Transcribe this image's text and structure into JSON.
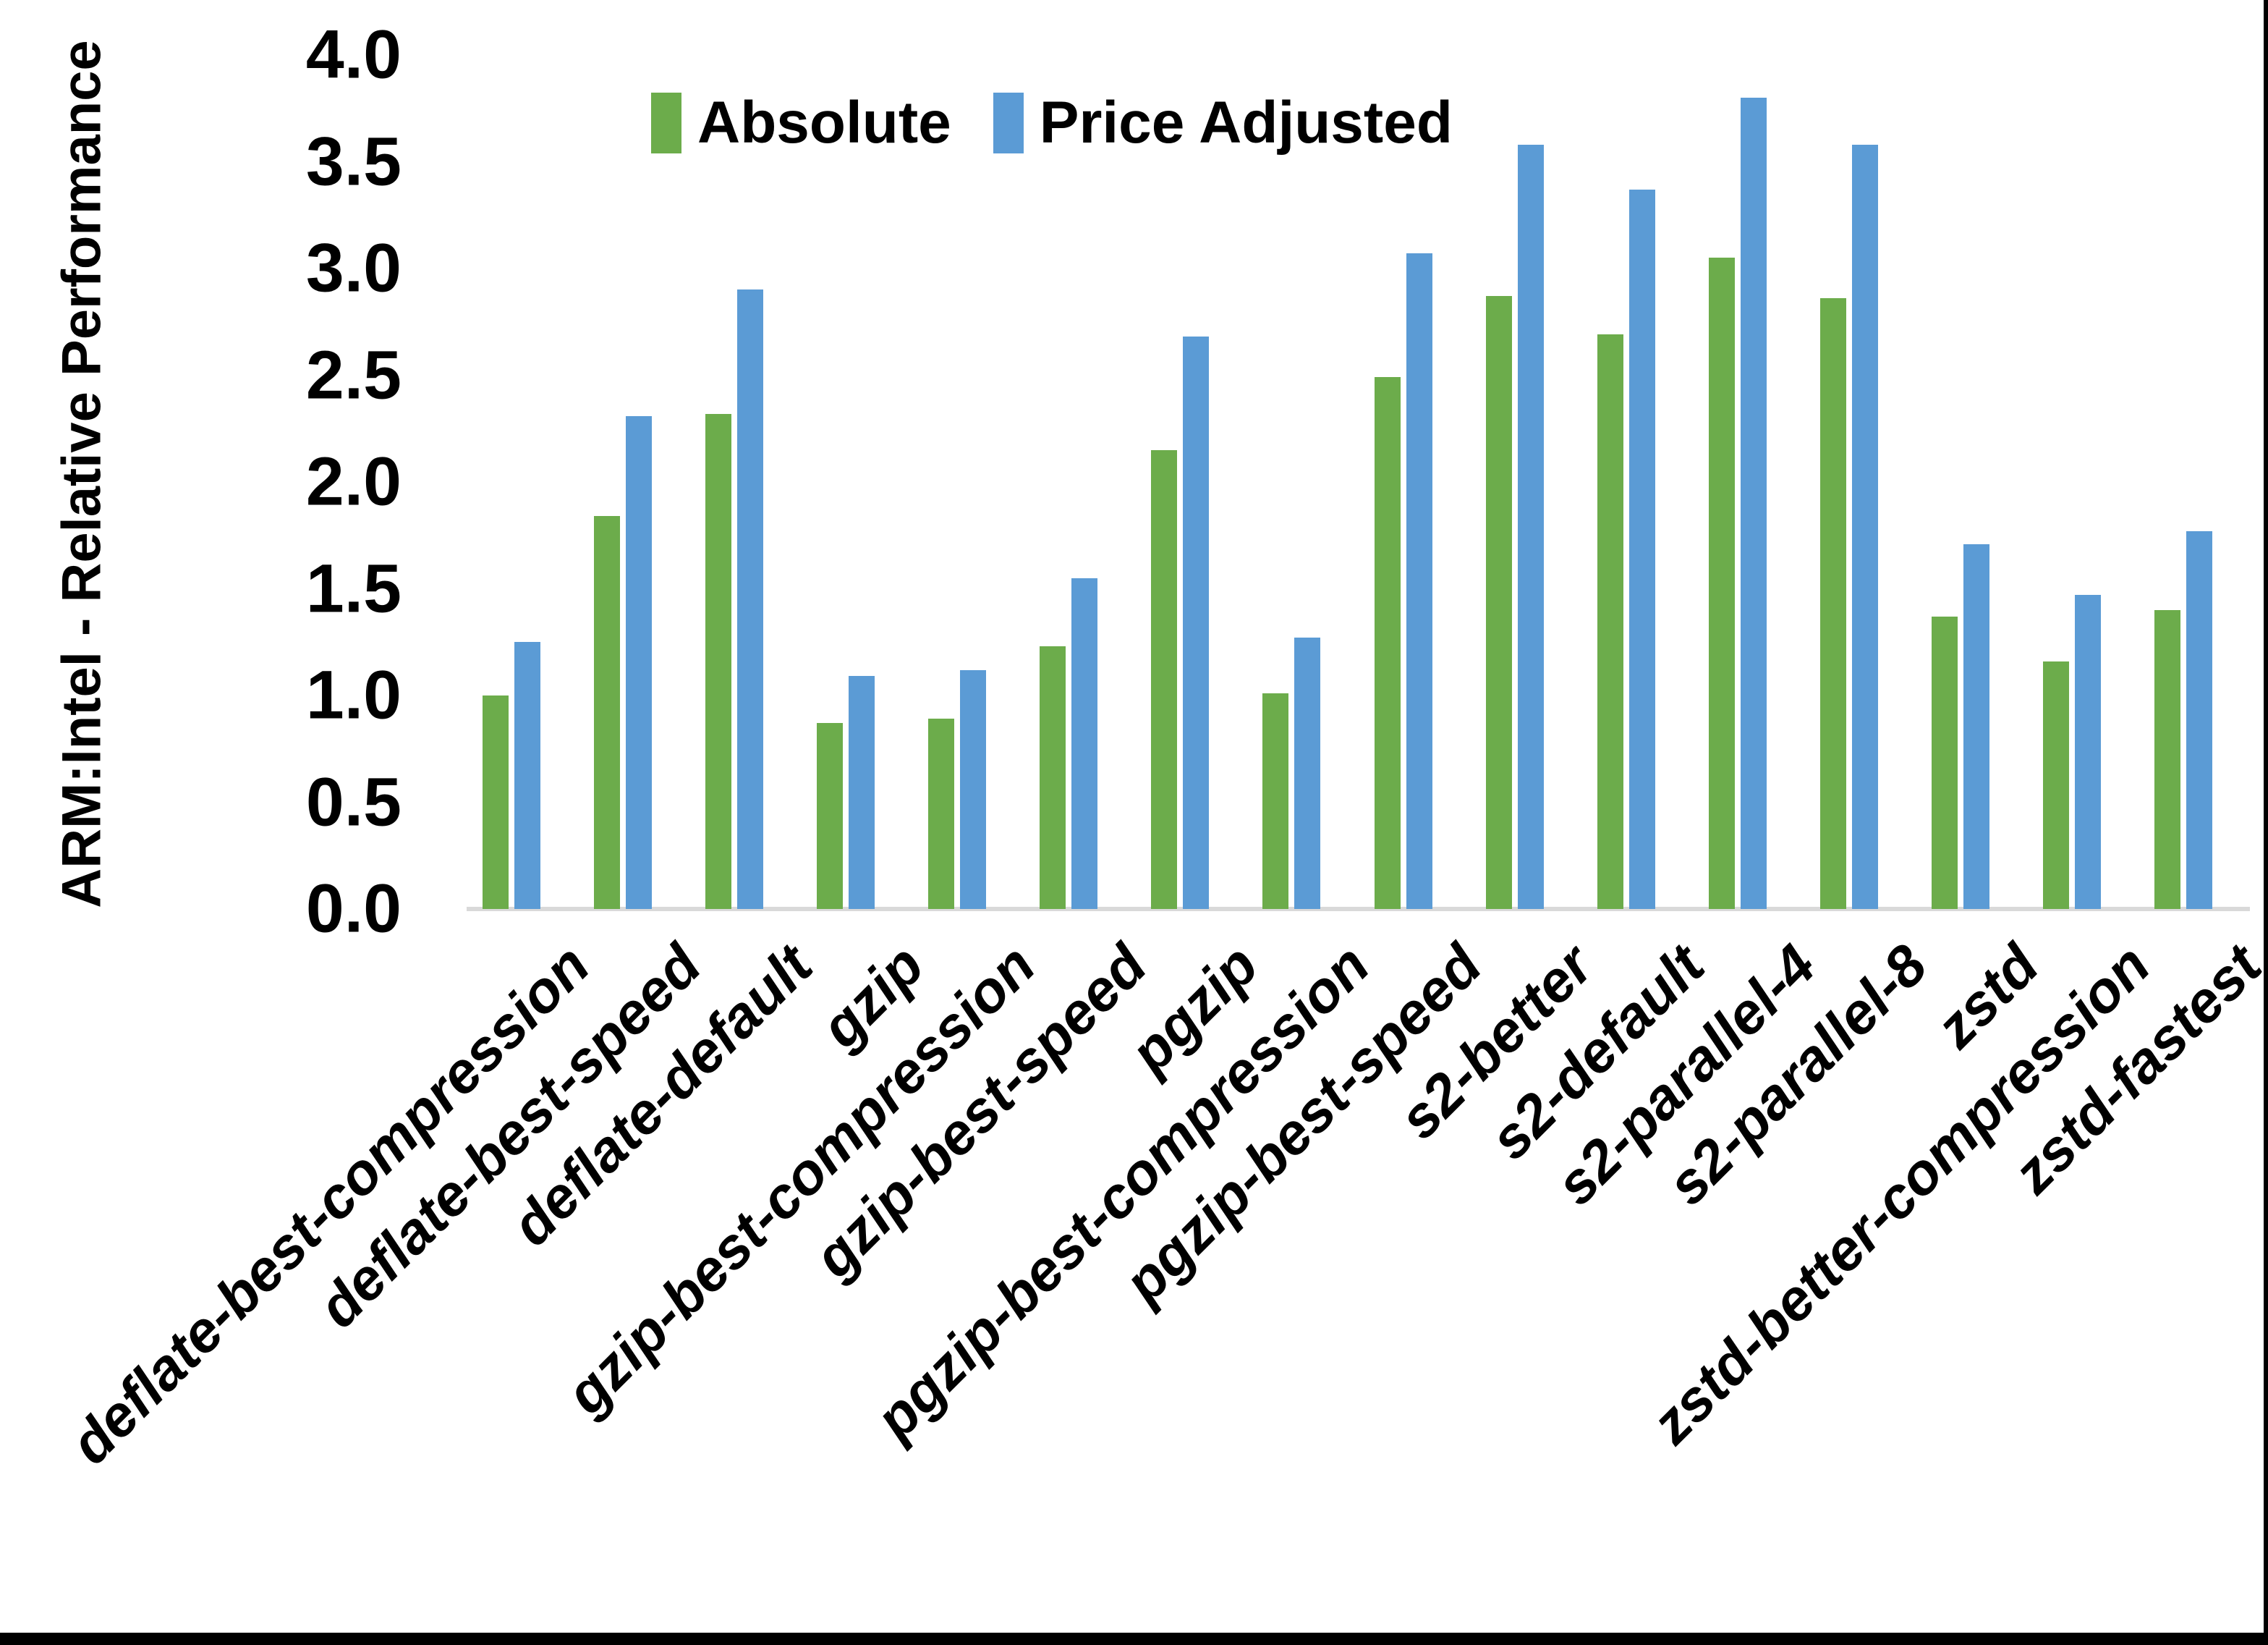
{
  "page": {
    "background": "#ffffff",
    "border_color": "#000000"
  },
  "axis": {
    "line_color": "#D9D9D9",
    "text_color": "#000000"
  },
  "legend": {
    "position": "top-center",
    "items": [
      {
        "label": "Absolute",
        "color": "#6CAC4B",
        "swatch": "green-square"
      },
      {
        "label": "Price Adjusted",
        "color": "#5B9BD5",
        "swatch": "blue-square"
      }
    ]
  },
  "chart_data": {
    "type": "bar",
    "title": "",
    "xlabel": "",
    "ylabel": "ARM:Intel - Relative Performance",
    "ylim": [
      0.0,
      4.0
    ],
    "ytick_step": 0.5,
    "ytick_labels": [
      "0.0",
      "0.5",
      "1.0",
      "1.5",
      "2.0",
      "2.5",
      "3.0",
      "3.5",
      "4.0"
    ],
    "grid": false,
    "legend_position": "top-center",
    "categories": [
      "deflate-best-compression",
      "deflate-best-speed",
      "deflate-default",
      "gzip",
      "gzip-best-compression",
      "gzip-best-speed",
      "pgzip",
      "pgzip-best-compression",
      "pgzip-best-speed",
      "s2-better",
      "s2-default",
      "s2-parallel-4",
      "s2-parallel-8",
      "zstd",
      "zstd-better-compression",
      "zstd-fastest"
    ],
    "series": [
      {
        "name": "Absolute",
        "color": "#6CAC4B",
        "values": [
          1.0,
          1.84,
          2.32,
          0.87,
          0.89,
          1.23,
          2.15,
          1.01,
          2.49,
          2.87,
          2.69,
          3.05,
          2.86,
          1.37,
          1.16,
          1.4
        ]
      },
      {
        "name": "Price Adjusted",
        "color": "#5B9BD5",
        "values": [
          1.25,
          2.31,
          2.9,
          1.09,
          1.12,
          1.55,
          2.68,
          1.27,
          3.07,
          3.58,
          3.37,
          3.8,
          3.58,
          1.71,
          1.47,
          1.77
        ]
      }
    ]
  }
}
